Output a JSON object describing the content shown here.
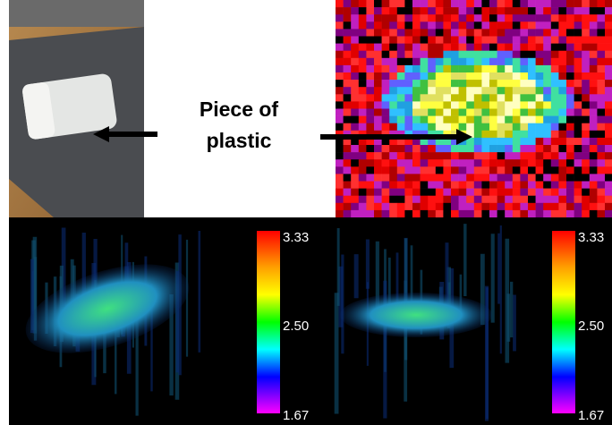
{
  "label": {
    "lines": [
      "Piece of",
      "plastic"
    ]
  },
  "colorbars": [
    {
      "ticks": [
        "3.33",
        "2.50",
        "1.67"
      ]
    },
    {
      "ticks": [
        "3.33",
        "2.50",
        "1.67"
      ]
    }
  ]
}
